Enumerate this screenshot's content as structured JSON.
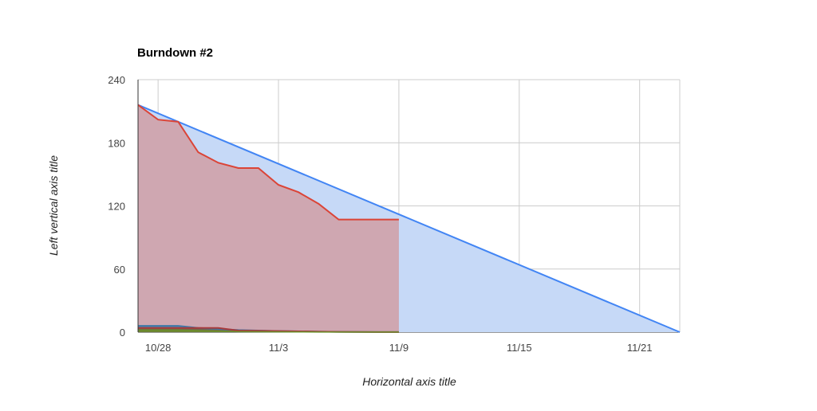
{
  "chart_data": {
    "type": "area",
    "title": "Burndown #2",
    "xlabel": "Horizontal axis title",
    "ylabel": "Left vertical axis title",
    "ylim": [
      0,
      240
    ],
    "y_ticks": [
      0,
      60,
      120,
      180,
      240
    ],
    "x_ticks": [
      "10/28",
      "11/3",
      "11/9",
      "11/15",
      "11/21"
    ],
    "xlim": [
      "10/27",
      "11/23"
    ],
    "grid": true,
    "legend": "none",
    "colors": {
      "ideal": "#4285f4",
      "ideal_fill": "#c6d9f7",
      "actual": "#db4437",
      "actual_fill": "#cfa7b1",
      "small1": "#3d78a8",
      "small2": "#7a5a3b",
      "small3": "#6b8f2a",
      "small4": "#a83a3a"
    },
    "series": [
      {
        "x": [
          "10/27",
          "11/23"
        ],
        "values": [
          216,
          0
        ]
      },
      {
        "x": [
          "10/27",
          "10/28",
          "10/29",
          "10/30",
          "10/31",
          "11/1",
          "11/2",
          "11/3",
          "11/4",
          "11/5",
          "11/6",
          "11/7",
          "11/8",
          "11/9"
        ],
        "values": [
          216,
          202,
          200,
          171,
          161,
          156,
          156,
          140,
          133,
          122,
          107,
          107,
          107,
          107
        ]
      },
      {
        "x": [
          "10/27",
          "10/28",
          "10/29",
          "10/30",
          "10/31",
          "11/1",
          "11/2",
          "11/3",
          "11/4",
          "11/5",
          "11/6",
          "11/7",
          "11/8",
          "11/9"
        ],
        "values": [
          6,
          6,
          6,
          4,
          3,
          2,
          1.5,
          1,
          0.8,
          0.5,
          0.3,
          0.2,
          0.1,
          0.1
        ]
      },
      {
        "x": [
          "10/27",
          "10/28",
          "10/29",
          "10/30",
          "10/31",
          "11/1",
          "11/2",
          "11/3",
          "11/4",
          "11/5",
          "11/6",
          "11/7",
          "11/8",
          "11/9"
        ],
        "values": [
          4,
          4,
          4,
          4,
          4,
          1.5,
          1.3,
          1,
          0.8,
          0.5,
          0.3,
          0.2,
          0.1,
          0.1
        ]
      },
      {
        "x": [
          "10/27",
          "10/28",
          "10/29",
          "10/30",
          "10/31",
          "11/1",
          "11/2",
          "11/3",
          "11/4",
          "11/5",
          "11/6",
          "11/7",
          "11/8",
          "11/9"
        ],
        "values": [
          2,
          2,
          2,
          1.5,
          1,
          0.5,
          0.4,
          0.3,
          0.2,
          0.1,
          0.1,
          0.1,
          0.1,
          0.1
        ]
      }
    ]
  }
}
